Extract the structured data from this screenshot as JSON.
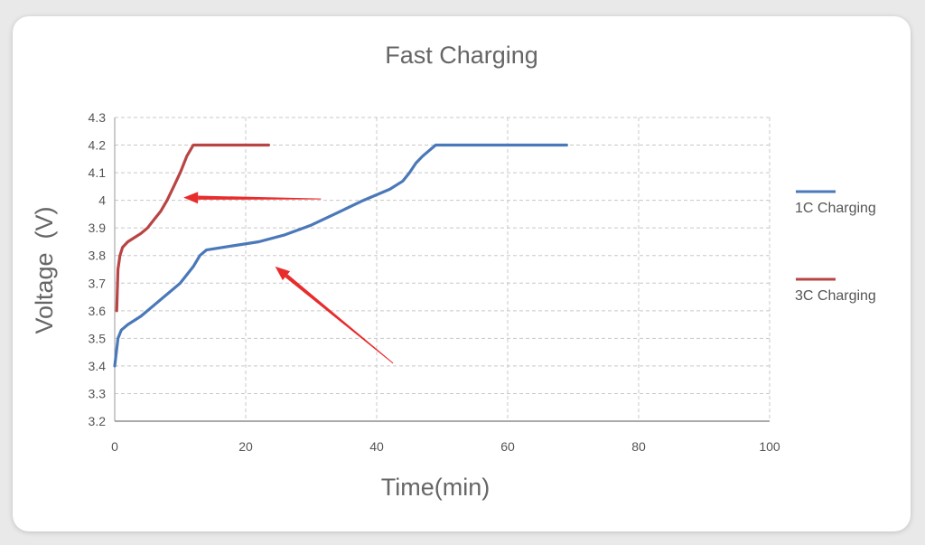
{
  "colors": {
    "series_1c": "#4a78b8",
    "series_3c": "#b94444",
    "arrow": "#e82c2c",
    "grid": "#c8c8c8"
  },
  "chart_data": {
    "type": "line",
    "title": "Fast Charging",
    "xlabel": "Time(min)",
    "ylabel": "Voltage  (V)",
    "xlim": [
      0,
      100
    ],
    "ylim": [
      3.2,
      4.3
    ],
    "x_ticks": [
      "0",
      "20",
      "40",
      "60",
      "80",
      "100"
    ],
    "y_ticks": [
      "3.2",
      "3.3",
      "3.4",
      "3.5",
      "3.6",
      "3.7",
      "3.8",
      "3.9",
      "4",
      "4.1",
      "4.2",
      "4.3"
    ],
    "grid": true,
    "legend_position": "right",
    "series": [
      {
        "name": "1C Charging",
        "x": [
          0,
          0.5,
          1,
          2,
          4,
          6,
          8,
          10,
          12,
          13,
          14,
          18,
          22,
          26,
          30,
          34,
          38,
          40,
          42,
          44,
          45,
          46,
          47,
          48,
          49,
          50,
          55,
          60,
          65,
          69
        ],
        "y": [
          3.4,
          3.5,
          3.53,
          3.55,
          3.58,
          3.62,
          3.66,
          3.7,
          3.76,
          3.8,
          3.82,
          3.835,
          3.85,
          3.875,
          3.91,
          3.955,
          4.0,
          4.02,
          4.04,
          4.07,
          4.1,
          4.135,
          4.16,
          4.18,
          4.2,
          4.2,
          4.2,
          4.2,
          4.2,
          4.2
        ]
      },
      {
        "name": "3C Charging",
        "x": [
          0.3,
          0.5,
          0.8,
          1.2,
          2,
          3,
          4,
          5,
          6,
          7,
          8,
          9,
          10,
          11,
          12,
          15,
          18,
          20,
          23.5
        ],
        "y": [
          3.6,
          3.75,
          3.8,
          3.83,
          3.85,
          3.865,
          3.88,
          3.9,
          3.93,
          3.96,
          4.0,
          4.05,
          4.1,
          4.16,
          4.2,
          4.2,
          4.2,
          4.2,
          4.2
        ]
      }
    ],
    "annotations": [
      {
        "type": "arrow",
        "from": [
          31.5,
          4.005
        ],
        "to": [
          10.5,
          4.01
        ]
      },
      {
        "type": "arrow",
        "from": [
          42.5,
          3.41
        ],
        "to": [
          24.5,
          3.76
        ]
      }
    ]
  }
}
